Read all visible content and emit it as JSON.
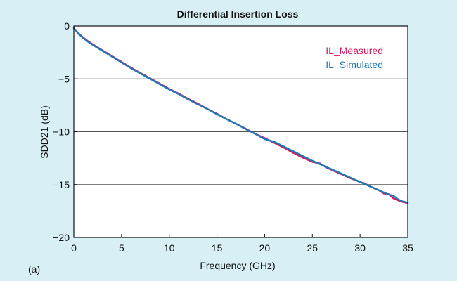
{
  "chart_data": {
    "type": "line",
    "title": "Differential Insertion Loss",
    "xlabel": "Frequency (GHz)",
    "ylabel": "SDD21 (dB)",
    "panel_label": "(a)",
    "xlim": [
      0,
      35
    ],
    "ylim": [
      -20,
      0
    ],
    "xticks": [
      0,
      5,
      10,
      15,
      20,
      25,
      30,
      35
    ],
    "xtick_labels": [
      "0",
      "5",
      "10",
      "15",
      "20",
      "25",
      "30",
      "35"
    ],
    "yticks": [
      0,
      -5,
      -10,
      -15,
      -20
    ],
    "ytick_labels": [
      "0",
      "−5",
      "−10",
      "−15",
      "−20"
    ],
    "grid": "horizontal",
    "legend_position": "top-right",
    "series": [
      {
        "name": "IL_Measured",
        "color": "#d81b60",
        "x": [
          0,
          0.5,
          1,
          1.5,
          2,
          3,
          4,
          5,
          6,
          7,
          8,
          9,
          10,
          11,
          12,
          13,
          14,
          15,
          16,
          17,
          18,
          19,
          20,
          21,
          22,
          23,
          24,
          25,
          25.8,
          26.5,
          27,
          28,
          29,
          30,
          30.5,
          31,
          31.5,
          32,
          32.5,
          33,
          33.5,
          34,
          34.5,
          35
        ],
        "y": [
          -0.2,
          -0.7,
          -1.1,
          -1.45,
          -1.75,
          -2.3,
          -2.85,
          -3.4,
          -3.95,
          -4.45,
          -4.95,
          -5.45,
          -5.95,
          -6.4,
          -6.9,
          -7.35,
          -7.85,
          -8.3,
          -8.8,
          -9.25,
          -9.7,
          -10.2,
          -10.6,
          -11.05,
          -11.5,
          -12.0,
          -12.45,
          -12.85,
          -13.0,
          -13.4,
          -13.6,
          -14.0,
          -14.4,
          -14.75,
          -14.9,
          -15.15,
          -15.35,
          -15.55,
          -15.85,
          -15.9,
          -16.3,
          -16.5,
          -16.65,
          -16.75
        ]
      },
      {
        "name": "IL_Simulated",
        "color": "#1f78b4",
        "x": [
          0,
          0.5,
          1,
          1.5,
          2,
          3,
          4,
          5,
          6,
          7,
          8,
          9,
          10,
          11,
          12,
          13,
          14,
          15,
          16,
          17,
          18,
          19,
          20,
          21,
          22,
          23,
          24,
          25,
          26,
          27,
          28,
          29,
          30,
          31,
          32,
          32.5,
          33,
          33.5,
          34,
          34.5,
          35
        ],
        "y": [
          -0.2,
          -0.75,
          -1.15,
          -1.5,
          -1.8,
          -2.35,
          -2.9,
          -3.45,
          -4.0,
          -4.5,
          -5.0,
          -5.5,
          -6.0,
          -6.45,
          -6.95,
          -7.4,
          -7.85,
          -8.35,
          -8.8,
          -9.25,
          -9.75,
          -10.2,
          -10.7,
          -10.95,
          -11.4,
          -11.85,
          -12.3,
          -12.75,
          -13.15,
          -13.55,
          -13.95,
          -14.35,
          -14.75,
          -15.15,
          -15.55,
          -15.75,
          -15.95,
          -16.05,
          -16.4,
          -16.6,
          -16.7
        ]
      }
    ]
  },
  "colors": {
    "background": "#d9eff6",
    "plot_background": "#ffffff",
    "grid": "#555555",
    "axis": "#111111"
  }
}
